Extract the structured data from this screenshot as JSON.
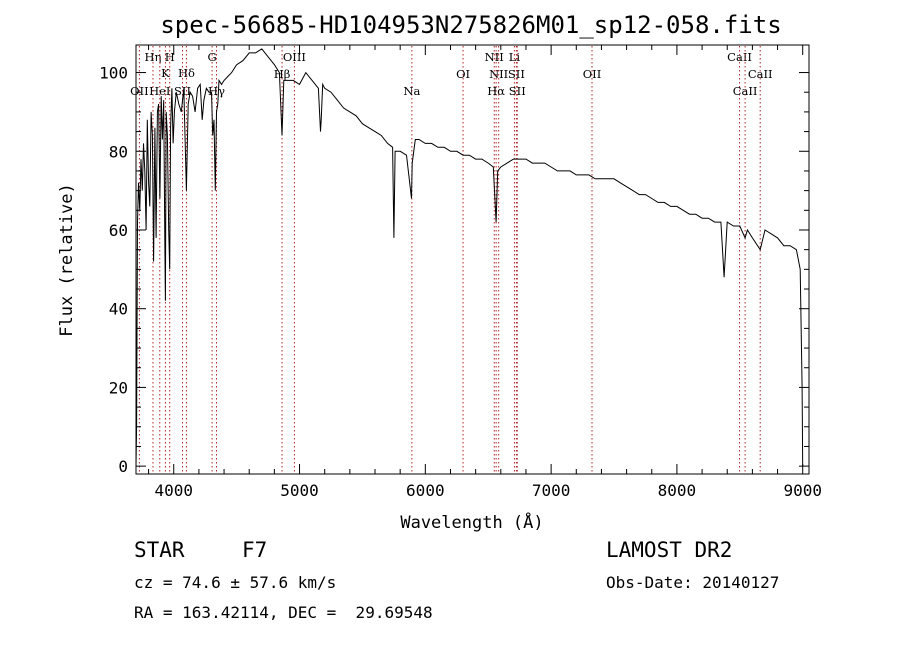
{
  "chart_data": {
    "type": "line",
    "title": "spec-56685-HD104953N275826M01_sp12-058.fits",
    "xlabel": "Wavelength (Å)",
    "ylabel": "Flux (relative)",
    "xlim": [
      3700,
      9050
    ],
    "ylim": [
      -2,
      107
    ],
    "xticks": [
      4000,
      5000,
      6000,
      7000,
      8000,
      9000
    ],
    "yticks": [
      0,
      20,
      40,
      60,
      80,
      100
    ],
    "grid": false,
    "series": [
      {
        "color": "#000000",
        "x": [
          3700,
          3705,
          3712,
          3720,
          3730,
          3740,
          3750,
          3760,
          3770,
          3780,
          3790,
          3800,
          3810,
          3820,
          3830,
          3840,
          3850,
          3860,
          3870,
          3880,
          3890,
          3900,
          3910,
          3920,
          3930,
          3934,
          3940,
          3950,
          3960,
          3968,
          3975,
          3985,
          3995,
          4005,
          4020,
          4040,
          4060,
          4080,
          4101,
          4115,
          4130,
          4150,
          4170,
          4190,
          4210,
          4226,
          4240,
          4260,
          4280,
          4300,
          4310,
          4320,
          4330,
          4340,
          4350,
          4360,
          4380,
          4400,
          4430,
          4460,
          4500,
          4550,
          4600,
          4650,
          4700,
          4750,
          4800,
          4840,
          4861,
          4875,
          4900,
          4950,
          5000,
          5050,
          5100,
          5150,
          5167,
          5172,
          5184,
          5200,
          5250,
          5300,
          5350,
          5400,
          5450,
          5500,
          5550,
          5600,
          5650,
          5700,
          5740,
          5750,
          5760,
          5800,
          5850,
          5890,
          5896,
          5920,
          5950,
          6000,
          6050,
          6100,
          6150,
          6200,
          6250,
          6300,
          6350,
          6400,
          6450,
          6500,
          6540,
          6563,
          6575,
          6600,
          6650,
          6700,
          6750,
          6800,
          6850,
          6900,
          6950,
          7000,
          7050,
          7100,
          7150,
          7200,
          7250,
          7300,
          7350,
          7400,
          7450,
          7500,
          7550,
          7600,
          7650,
          7700,
          7750,
          7800,
          7850,
          7900,
          7950,
          8000,
          8050,
          8100,
          8150,
          8200,
          8250,
          8300,
          8350,
          8375,
          8400,
          8450,
          8500,
          8542,
          8560,
          8600,
          8662,
          8700,
          8750,
          8800,
          8850,
          8900,
          8950,
          8980,
          8995,
          9000
        ],
        "values": [
          0,
          10,
          62,
          72,
          65,
          78,
          70,
          82,
          75,
          60,
          88,
          72,
          66,
          90,
          84,
          52,
          86,
          58,
          90,
          92,
          68,
          94,
          83,
          93,
          55,
          42,
          90,
          84,
          60,
          50,
          86,
          96,
          82,
          90,
          95,
          92,
          90,
          96,
          70,
          92,
          95,
          94,
          90,
          96,
          97,
          88,
          93,
          96,
          95,
          95,
          84,
          88,
          70,
          90,
          92,
          98,
          97,
          98,
          99,
          100,
          102,
          103,
          105,
          105,
          106,
          104,
          102,
          100,
          84,
          98,
          98,
          98,
          97,
          100,
          98,
          96,
          85,
          88,
          97,
          96,
          95,
          93,
          91,
          90,
          89,
          87,
          86,
          85,
          84,
          82,
          81,
          58,
          80,
          80,
          79,
          68,
          77,
          83,
          83,
          82,
          82,
          81,
          81,
          80,
          80,
          79,
          79,
          78,
          78,
          77,
          76,
          62,
          75,
          76,
          77,
          78,
          78,
          78,
          77,
          77,
          77,
          76,
          75,
          75,
          75,
          74,
          74,
          74,
          73,
          73,
          73,
          73,
          72,
          71,
          70,
          69,
          69,
          68,
          67,
          67,
          66,
          66,
          65,
          64,
          64,
          63,
          63,
          62,
          62,
          48,
          62,
          61,
          61,
          58,
          60,
          58,
          55,
          60,
          59,
          58,
          56,
          56,
          55,
          50,
          20,
          0
        ]
      }
    ],
    "line_markers": [
      {
        "label": "OII",
        "x": 3727,
        "row": 4
      },
      {
        "label": "Hη",
        "x": 3835,
        "row": 1
      },
      {
        "label": "HeI",
        "x": 3889,
        "row": 4
      },
      {
        "label": "K",
        "x": 3934,
        "row": 2
      },
      {
        "label": "H",
        "x": 3968,
        "row": 1
      },
      {
        "label": "SII",
        "x": 4070,
        "row": 4
      },
      {
        "label": "Hδ",
        "x": 4101,
        "row": 2
      },
      {
        "label": "G",
        "x": 4305,
        "row": 1
      },
      {
        "label": "Hγ",
        "x": 4340,
        "row": 4
      },
      {
        "label": "Hβ",
        "x": 4861,
        "row": 3
      },
      {
        "label": "OIII",
        "x": 4959,
        "row": 1
      },
      {
        "label": "Na",
        "x": 5893,
        "row": 4
      },
      {
        "label": "OI",
        "x": 6300,
        "row": 3
      },
      {
        "label": "NII",
        "x": 6548,
        "row": 1
      },
      {
        "label": "NII",
        "x": 6583,
        "row": 3
      },
      {
        "label": "Hα",
        "x": 6563,
        "row": 4
      },
      {
        "label": "Li",
        "x": 6708,
        "row": 1
      },
      {
        "label": "SII",
        "x": 6724,
        "row": 3
      },
      {
        "label": "SII",
        "x": 6731,
        "row": 4
      },
      {
        "label": "OII",
        "x": 7325,
        "row": 3
      },
      {
        "label": "CaII",
        "x": 8498,
        "row": 1
      },
      {
        "label": "CaII",
        "x": 8542,
        "row": 4
      },
      {
        "label": "CaII",
        "x": 8662,
        "row": 3
      }
    ]
  },
  "info": {
    "object_type": "STAR",
    "subclass": "F7",
    "survey": "LAMOST DR2",
    "cz": "cz = 74.6 ± 57.6 km/s",
    "obs_date": "Obs-Date: 20140127",
    "radec": "RA = 163.42114, DEC =  29.69548"
  }
}
